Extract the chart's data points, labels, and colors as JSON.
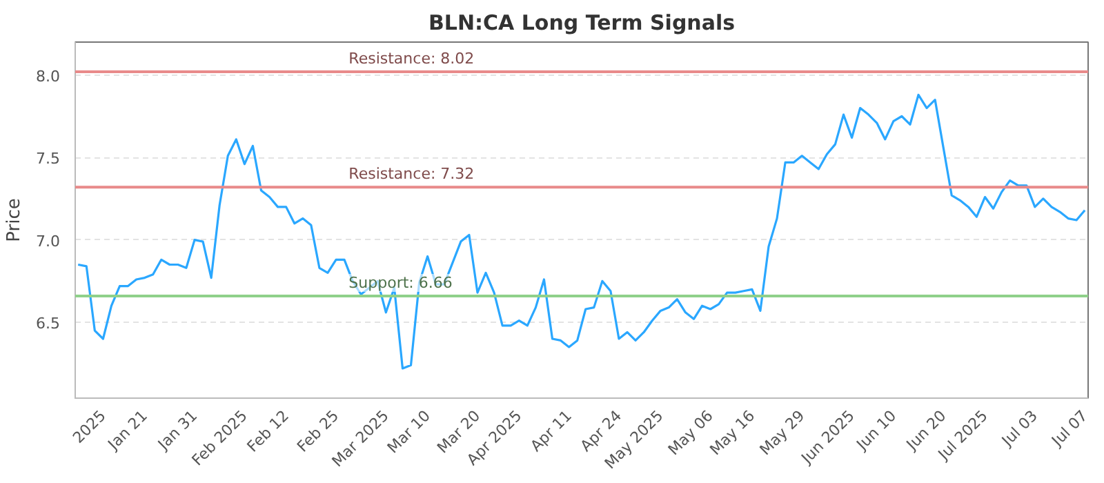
{
  "chart_data": {
    "type": "line",
    "title": "BLN:CA Long Term Signals",
    "ylabel": "Price",
    "categories": [
      null,
      null,
      null,
      "2025",
      null,
      null,
      null,
      null,
      "Jan 21",
      null,
      null,
      null,
      null,
      null,
      "Jan 31",
      null,
      null,
      null,
      null,
      null,
      "Feb 2025",
      null,
      null,
      null,
      null,
      "Feb 12",
      null,
      null,
      null,
      null,
      null,
      "Feb 25",
      null,
      null,
      null,
      null,
      null,
      "Mar 2025",
      null,
      null,
      null,
      null,
      "Mar 10",
      null,
      null,
      null,
      null,
      null,
      "Mar 20",
      null,
      null,
      null,
      null,
      "Apr 2025",
      null,
      null,
      null,
      null,
      null,
      "Apr 11",
      null,
      null,
      null,
      null,
      null,
      "Apr 24",
      null,
      null,
      null,
      null,
      "May 2025",
      null,
      null,
      null,
      null,
      null,
      "May 06",
      null,
      null,
      null,
      null,
      "May 16",
      null,
      null,
      null,
      null,
      null,
      "May 29",
      null,
      null,
      null,
      null,
      null,
      "Jun 2025",
      null,
      null,
      null,
      null,
      "Jun 10",
      null,
      null,
      null,
      null,
      null,
      "Jun 20",
      null,
      null,
      null,
      null,
      "Jul 2025",
      null,
      null,
      null,
      null,
      null,
      "Jul 03",
      null,
      null,
      null,
      null,
      null,
      "Jul 07"
    ],
    "series": [
      {
        "color": "#2aa7ff",
        "values": [
          6.85,
          6.84,
          6.45,
          6.4,
          6.6,
          6.72,
          6.72,
          6.76,
          6.77,
          6.79,
          6.88,
          6.85,
          6.85,
          6.83,
          7.0,
          6.99,
          6.77,
          7.21,
          7.51,
          7.61,
          7.46,
          7.57,
          7.3,
          7.26,
          7.2,
          7.2,
          7.1,
          7.13,
          7.09,
          6.83,
          6.8,
          6.88,
          6.88,
          6.75,
          6.67,
          6.71,
          6.75,
          6.56,
          6.71,
          6.22,
          6.24,
          6.74,
          6.9,
          6.73,
          6.73,
          6.86,
          6.99,
          7.03,
          6.68,
          6.8,
          6.68,
          6.48,
          6.48,
          6.51,
          6.48,
          6.59,
          6.76,
          6.4,
          6.39,
          6.35,
          6.39,
          6.58,
          6.59,
          6.75,
          6.69,
          6.4,
          6.44,
          6.39,
          6.44,
          6.51,
          6.57,
          6.59,
          6.64,
          6.56,
          6.52,
          6.6,
          6.58,
          6.61,
          6.68,
          6.68,
          6.69,
          6.7,
          6.57,
          6.96,
          7.13,
          7.47,
          7.47,
          7.51,
          7.47,
          7.43,
          7.52,
          7.58,
          7.76,
          7.62,
          7.8,
          7.76,
          7.71,
          7.61,
          7.72,
          7.75,
          7.7,
          7.88,
          7.8,
          7.85,
          7.56,
          7.27,
          7.24,
          7.2,
          7.14,
          7.26,
          7.19,
          7.29,
          7.36,
          7.33,
          7.33,
          7.2,
          7.25,
          7.2,
          7.17,
          7.13,
          7.12,
          7.18
        ]
      }
    ],
    "ylim": [
      6.04,
      8.2
    ],
    "yticks": [
      {
        "value": 6.5,
        "label": "6.5"
      },
      {
        "value": 7,
        "label": "7.0"
      },
      {
        "value": 7.5,
        "label": "7.5"
      },
      {
        "value": 8,
        "label": "8.0"
      }
    ],
    "grid": "y",
    "ref_lines": [
      {
        "axis": "y",
        "value": 8.02,
        "label": "Resistance: 8.02",
        "color": "#e88a8a"
      },
      {
        "axis": "y",
        "value": 7.32,
        "label": "Resistance: 7.32",
        "color": "#e88a8a"
      },
      {
        "axis": "y",
        "value": 6.66,
        "label": "Support: 6.66",
        "color": "#8fd08a"
      }
    ]
  }
}
